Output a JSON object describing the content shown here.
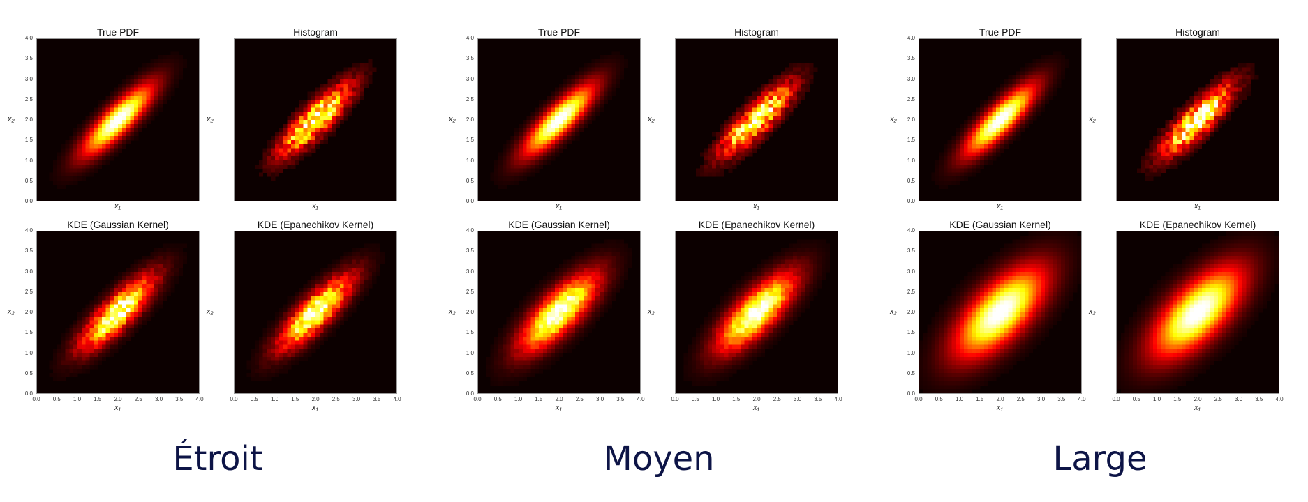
{
  "figure": {
    "captions": [
      "Étroit",
      "Moyen",
      "Large"
    ],
    "panel_titles": [
      "True PDF",
      "Histogram",
      "KDE (Gaussian Kernel)",
      "KDE (Epanechikov Kernel)"
    ],
    "x_axis_label": "x₁",
    "y_axis_label": "x₂",
    "tick_labels": [
      "0.0",
      "0.5",
      "1.0",
      "1.5",
      "2.0",
      "2.5",
      "3.0",
      "3.5",
      "4.0"
    ],
    "colormap": "hot",
    "colors": {
      "background": "#ffffff",
      "plot_bg": "#0c0000",
      "caption": "#0d1446"
    }
  },
  "chart_data": [
    {
      "type": "heatmap",
      "group": "Étroit",
      "title": "True PDF",
      "xlabel": "x₁",
      "ylabel": "x₂",
      "xlim": [
        0,
        4
      ],
      "ylim": [
        0,
        4
      ],
      "peak": [
        2.0,
        2.0
      ],
      "kind": "smooth",
      "bandwidth": "none"
    },
    {
      "type": "heatmap",
      "group": "Étroit",
      "title": "Histogram",
      "xlabel": "x₁",
      "ylabel": "x₂",
      "xlim": [
        0,
        4
      ],
      "ylim": [
        0,
        4
      ],
      "peak": [
        2.0,
        2.0
      ],
      "kind": "binned",
      "bandwidth": "none"
    },
    {
      "type": "heatmap",
      "group": "Étroit",
      "title": "KDE (Gaussian Kernel)",
      "xlabel": "x₁",
      "ylabel": "x₂",
      "xlim": [
        0,
        4
      ],
      "ylim": [
        0,
        4
      ],
      "peak": [
        2.0,
        2.0
      ],
      "kind": "kde",
      "bandwidth": "narrow"
    },
    {
      "type": "heatmap",
      "group": "Étroit",
      "title": "KDE (Epanechikov Kernel)",
      "xlabel": "x₁",
      "ylabel": "x₂",
      "xlim": [
        0,
        4
      ],
      "ylim": [
        0,
        4
      ],
      "peak": [
        2.0,
        2.0
      ],
      "kind": "kde",
      "bandwidth": "narrow"
    },
    {
      "type": "heatmap",
      "group": "Moyen",
      "title": "True PDF",
      "xlabel": "x₁",
      "ylabel": "x₂",
      "xlim": [
        0,
        4
      ],
      "ylim": [
        0,
        4
      ],
      "peak": [
        2.0,
        2.0
      ],
      "kind": "smooth",
      "bandwidth": "none"
    },
    {
      "type": "heatmap",
      "group": "Moyen",
      "title": "Histogram",
      "xlabel": "x₁",
      "ylabel": "x₂",
      "xlim": [
        0,
        4
      ],
      "ylim": [
        0,
        4
      ],
      "peak": [
        2.0,
        2.0
      ],
      "kind": "binned",
      "bandwidth": "none"
    },
    {
      "type": "heatmap",
      "group": "Moyen",
      "title": "KDE (Gaussian Kernel)",
      "xlabel": "x₁",
      "ylabel": "x₂",
      "xlim": [
        0,
        4
      ],
      "ylim": [
        0,
        4
      ],
      "peak": [
        2.0,
        2.0
      ],
      "kind": "kde",
      "bandwidth": "medium"
    },
    {
      "type": "heatmap",
      "group": "Moyen",
      "title": "KDE (Epanechikov Kernel)",
      "xlabel": "x₁",
      "ylabel": "x₂",
      "xlim": [
        0,
        4
      ],
      "ylim": [
        0,
        4
      ],
      "peak": [
        2.0,
        2.0
      ],
      "kind": "kde",
      "bandwidth": "medium"
    },
    {
      "type": "heatmap",
      "group": "Large",
      "title": "True PDF",
      "xlabel": "x₁",
      "ylabel": "x₂",
      "xlim": [
        0,
        4
      ],
      "ylim": [
        0,
        4
      ],
      "peak": [
        2.0,
        2.0
      ],
      "kind": "smooth",
      "bandwidth": "none"
    },
    {
      "type": "heatmap",
      "group": "Large",
      "title": "Histogram",
      "xlabel": "x₁",
      "ylabel": "x₂",
      "xlim": [
        0,
        4
      ],
      "ylim": [
        0,
        4
      ],
      "peak": [
        2.0,
        2.0
      ],
      "kind": "binned",
      "bandwidth": "none"
    },
    {
      "type": "heatmap",
      "group": "Large",
      "title": "KDE (Gaussian Kernel)",
      "xlabel": "x₁",
      "ylabel": "x₂",
      "xlim": [
        0,
        4
      ],
      "ylim": [
        0,
        4
      ],
      "peak": [
        2.0,
        2.0
      ],
      "kind": "kde",
      "bandwidth": "wide"
    },
    {
      "type": "heatmap",
      "group": "Large",
      "title": "KDE (Epanechikov Kernel)",
      "xlabel": "x₁",
      "ylabel": "x₂",
      "xlim": [
        0,
        4
      ],
      "ylim": [
        0,
        4
      ],
      "peak": [
        2.0,
        2.0
      ],
      "kind": "kde",
      "bandwidth": "wide"
    }
  ]
}
